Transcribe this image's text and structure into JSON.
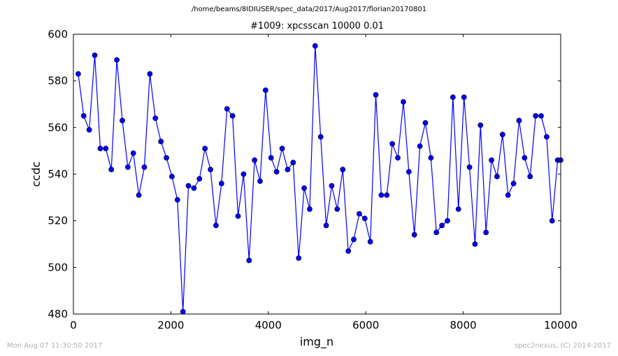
{
  "suptitle": "/home/beams/8IDIUSER/spec_data/2017/Aug2017/florian20170801",
  "footer_left": "Mon Aug 07 11:30:50 2017",
  "footer_right": "spec2nexus, (C) 2014-2017",
  "chart_data": {
    "type": "line",
    "title": "#1009: xpcsscan 10000 0.01",
    "xlabel": "img_n",
    "ylabel": "ccdc",
    "xlim": [
      0,
      10000
    ],
    "ylim": [
      480,
      600
    ],
    "xticks": [
      "0",
      "2000",
      "4000",
      "6000",
      "8000",
      "10000"
    ],
    "yticks": [
      "480",
      "500",
      "520",
      "540",
      "560",
      "580",
      "600"
    ],
    "grid": false,
    "color": "#0000ff",
    "marker": "circle",
    "series": [
      {
        "x": [
          99,
          212,
          325,
          438,
          552,
          665,
          778,
          891,
          1004,
          1117,
          1230,
          1343,
          1456,
          1569,
          1682,
          1796,
          1909,
          2022,
          2135,
          2248,
          2361,
          2474,
          2587,
          2700,
          2813,
          2926,
          3040,
          3153,
          3266,
          3379,
          3492,
          3605,
          3718,
          3831,
          3944,
          4057,
          4170,
          4284,
          4397,
          4510,
          4623,
          4736,
          4849,
          4962,
          5075,
          5188,
          5301,
          5414,
          5528,
          5641,
          5754,
          5867,
          5980,
          6093,
          6206,
          6319,
          6432,
          6545,
          6658,
          6772,
          6885,
          6998,
          7111,
          7224,
          7337,
          7450,
          7563,
          7676,
          7789,
          7902,
          8016,
          8129,
          8242,
          8355,
          8468,
          8581,
          8694,
          8807,
          8920,
          9033,
          9146,
          9260,
          9373,
          9486,
          9599,
          9712,
          9825,
          9938,
          9999
        ],
        "y": [
          583,
          565,
          559,
          591,
          551,
          551,
          542,
          589,
          563,
          543,
          549,
          531,
          543,
          583,
          564,
          554,
          547,
          539,
          529,
          481,
          535,
          534,
          538,
          551,
          542,
          518,
          536,
          568,
          565,
          522,
          540,
          503,
          546,
          537,
          576,
          547,
          541,
          551,
          542,
          545,
          504,
          534,
          525,
          595,
          556,
          518,
          535,
          525,
          542,
          507,
          512,
          523,
          521,
          511,
          574,
          531,
          531,
          553,
          547,
          571,
          541,
          514,
          552,
          562,
          547,
          515,
          518,
          520,
          573,
          525,
          573,
          543,
          510,
          561,
          515,
          546,
          539,
          557,
          531,
          536,
          563,
          547,
          539,
          565,
          565,
          556,
          520,
          546,
          546
        ]
      }
    ]
  }
}
